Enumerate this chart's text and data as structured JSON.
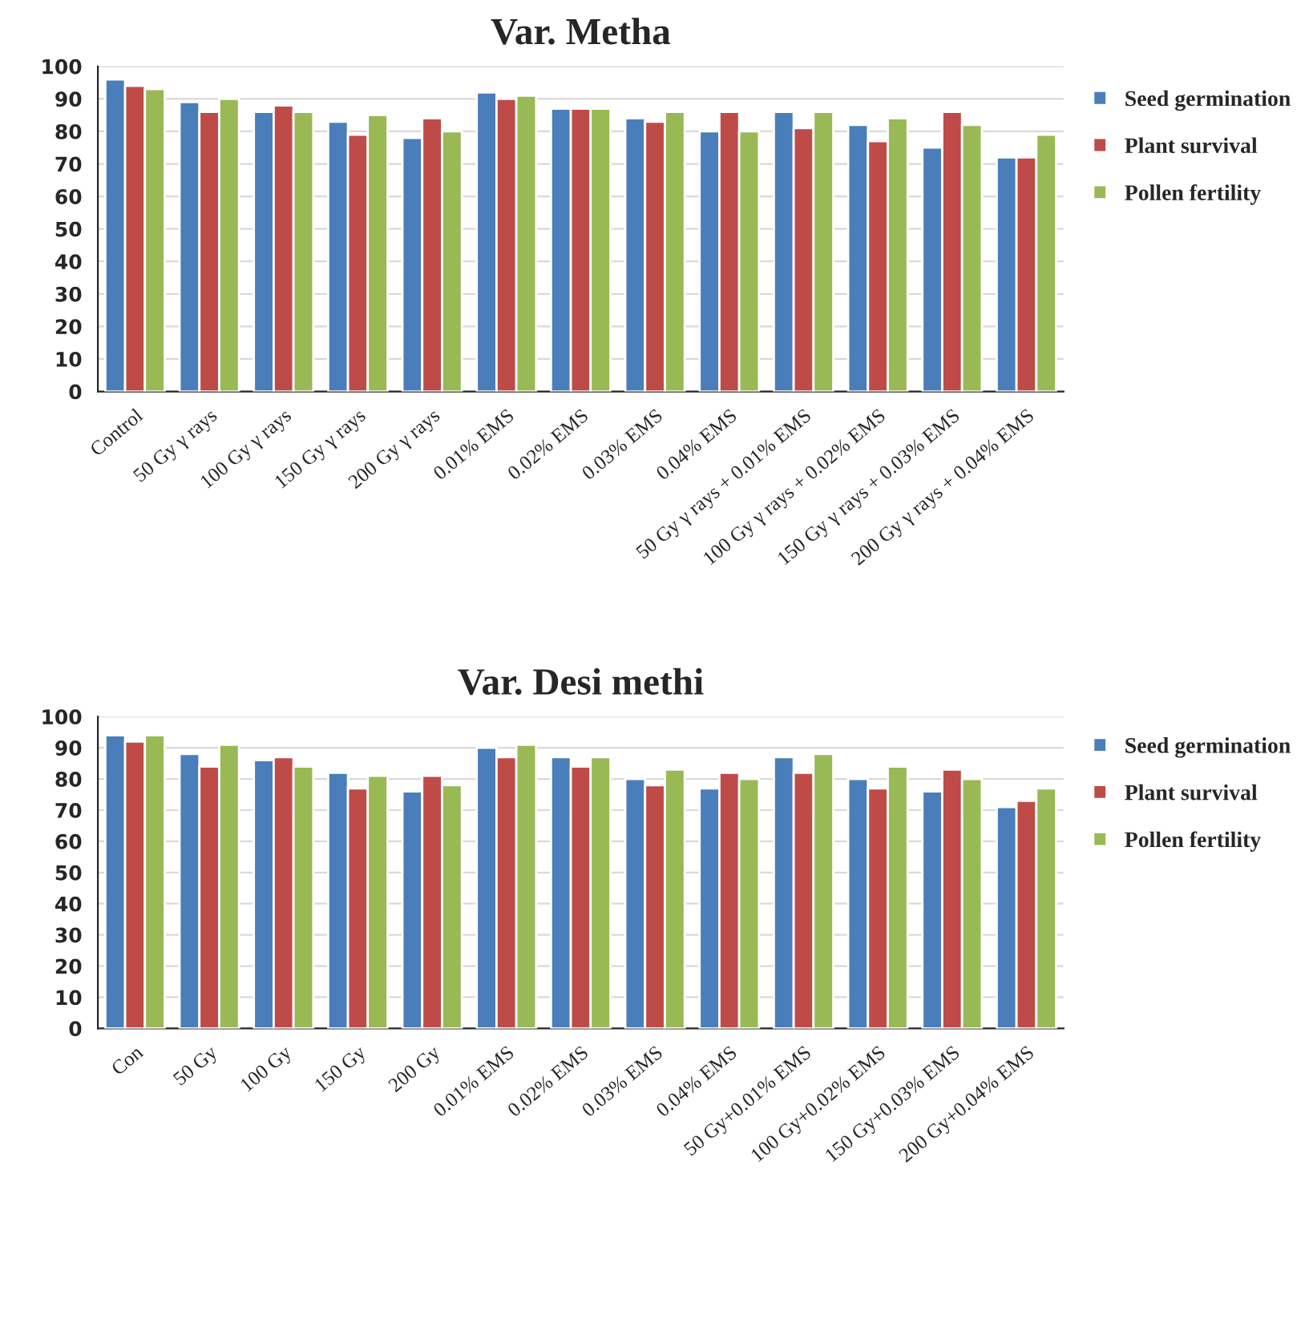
{
  "chart_data": [
    {
      "type": "bar",
      "title": "Var. Metha",
      "categories": [
        "Control",
        "50 Gy γ rays",
        "100 Gy γ rays",
        "150 Gy γ rays",
        "200 Gy γ rays",
        "0.01% EMS",
        "0.02% EMS",
        "0.03% EMS",
        "0.04% EMS",
        "50 Gy γ rays + 0.01% EMS",
        "100 Gy γ rays + 0.02% EMS",
        "150 Gy γ rays + 0.03% EMS",
        "200 Gy γ rays + 0.04% EMS"
      ],
      "series": [
        {
          "name": "Seed germination",
          "color": "#4a7ebb",
          "values": [
            96,
            89,
            86,
            83,
            78,
            92,
            87,
            84,
            80,
            86,
            82,
            75,
            72
          ]
        },
        {
          "name": "Plant survival",
          "color": "#be4b48",
          "values": [
            94,
            86,
            88,
            79,
            84,
            90,
            87,
            83,
            86,
            81,
            77,
            86,
            72
          ]
        },
        {
          "name": "Pollen fertility",
          "color": "#98b954",
          "values": [
            93,
            90,
            86,
            85,
            80,
            91,
            87,
            86,
            80,
            86,
            84,
            82,
            79
          ]
        }
      ],
      "ylim": [
        0,
        100
      ],
      "yticks": [
        0,
        10,
        20,
        30,
        40,
        50,
        60,
        70,
        80,
        90,
        100
      ],
      "grid": "y",
      "legend": "right"
    },
    {
      "type": "bar",
      "title": "Var. Desi methi",
      "categories": [
        "Con",
        "50 Gy",
        "100 Gy",
        "150 Gy",
        "200 Gy",
        "0.01% EMS",
        "0.02% EMS",
        "0.03% EMS",
        "0.04% EMS",
        "50 Gy+0.01% EMS",
        "100 Gy+0.02% EMS",
        "150 Gy+0.03% EMS",
        "200 Gy+0.04% EMS"
      ],
      "series": [
        {
          "name": "Seed germination",
          "color": "#4a7ebb",
          "values": [
            94,
            88,
            86,
            82,
            76,
            90,
            87,
            80,
            77,
            87,
            80,
            76,
            71
          ]
        },
        {
          "name": "Plant survival",
          "color": "#be4b48",
          "values": [
            92,
            84,
            87,
            77,
            81,
            87,
            84,
            78,
            82,
            82,
            77,
            83,
            73
          ]
        },
        {
          "name": "Pollen fertility",
          "color": "#98b954",
          "values": [
            94,
            91,
            84,
            81,
            78,
            91,
            87,
            83,
            80,
            88,
            84,
            80,
            77
          ]
        }
      ],
      "ylim": [
        0,
        100
      ],
      "yticks": [
        0,
        10,
        20,
        30,
        40,
        50,
        60,
        70,
        80,
        90,
        100
      ],
      "grid": "y",
      "legend": "right"
    }
  ]
}
